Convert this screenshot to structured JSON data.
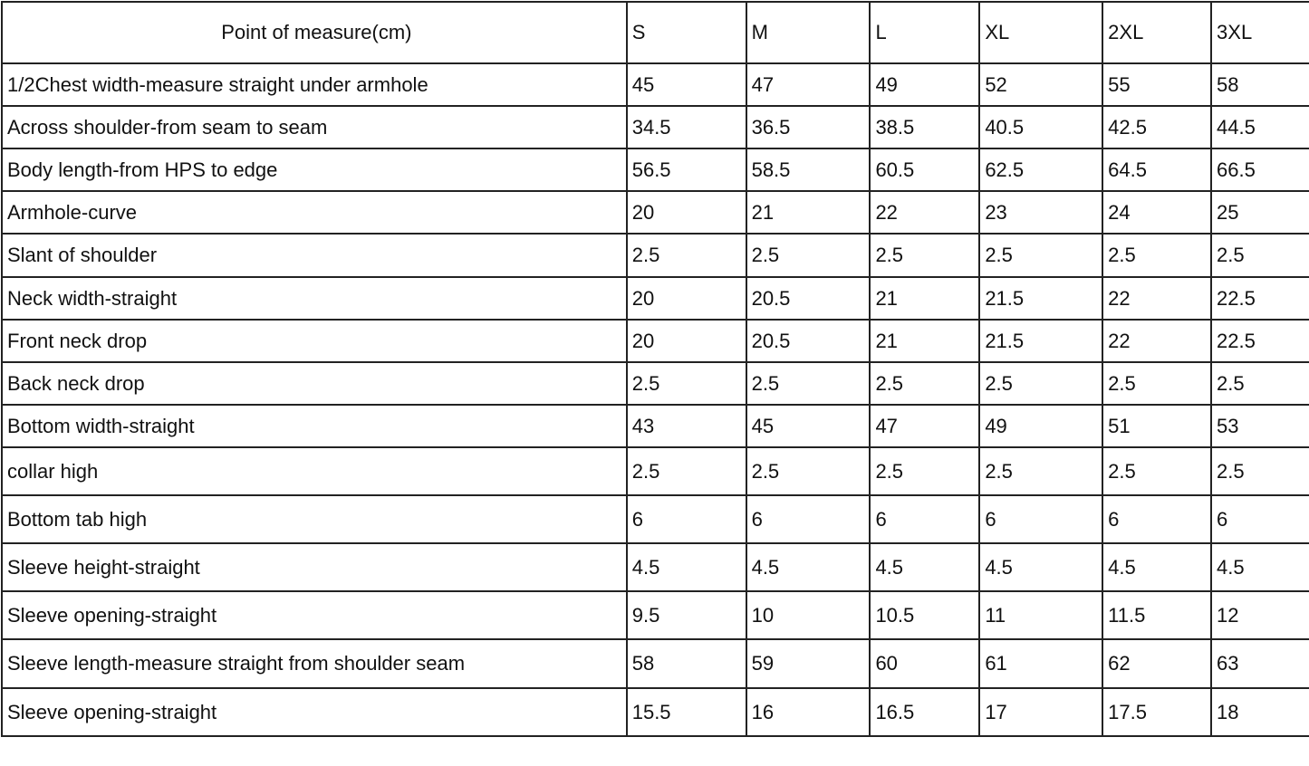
{
  "table": {
    "header": [
      "Point of measure(cm)",
      "S",
      "M",
      "L",
      "XL",
      "2XL",
      "3XL"
    ],
    "rows": [
      [
        "1/2Chest width-measure straight under armhole",
        "45",
        "47",
        "49",
        "52",
        "55",
        "58"
      ],
      [
        "Across shoulder-from seam to seam",
        "34.5",
        "36.5",
        "38.5",
        "40.5",
        "42.5",
        "44.5"
      ],
      [
        "Body  length-from HPS to edge",
        "56.5",
        "58.5",
        "60.5",
        "62.5",
        "64.5",
        "66.5"
      ],
      [
        "Armhole-curve",
        "20",
        "21",
        "22",
        "23",
        "24",
        "25"
      ],
      [
        "Slant of shoulder",
        "2.5",
        "2.5",
        "2.5",
        "2.5",
        "2.5",
        "2.5"
      ],
      [
        "Neck width-straight",
        "20",
        "20.5",
        "21",
        "21.5",
        "22",
        "22.5"
      ],
      [
        "Front neck drop",
        "20",
        "20.5",
        "21",
        "21.5",
        "22",
        "22.5"
      ],
      [
        "Back neck drop",
        "2.5",
        "2.5",
        "2.5",
        "2.5",
        "2.5",
        "2.5"
      ],
      [
        "Bottom width-straight",
        "43",
        "45",
        "47",
        "49",
        "51",
        "53"
      ],
      [
        "collar high",
        "2.5",
        "2.5",
        "2.5",
        "2.5",
        "2.5",
        "2.5"
      ],
      [
        "Bottom tab high",
        "6",
        "6",
        "6",
        "6",
        "6",
        "6"
      ],
      [
        "Sleeve height-straight",
        "4.5",
        "4.5",
        "4.5",
        "4.5",
        "4.5",
        "4.5"
      ],
      [
        "Sleeve opening-straight",
        "9.5",
        "10",
        "10.5",
        "11",
        "11.5",
        "12"
      ],
      [
        "Sleeve length-measure straight from shoulder seam",
        "58",
        "59",
        "60",
        "61",
        "62",
        "63"
      ],
      [
        "Sleeve opening-straight",
        "15.5",
        "16",
        "16.5",
        "17",
        "17.5",
        "18"
      ]
    ]
  }
}
